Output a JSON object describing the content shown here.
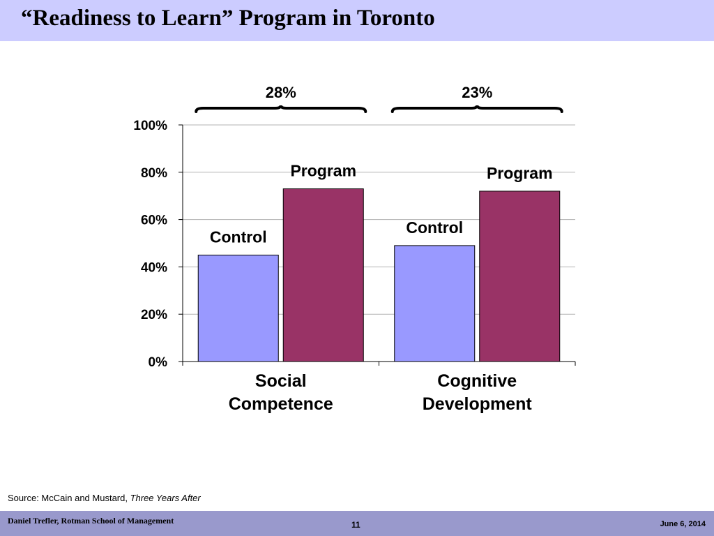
{
  "slide": {
    "title": "“Readiness to Learn” Program in Toronto",
    "source_prefix": "Source: McCain and Mustard, ",
    "source_italic": "Three Years After",
    "author": "Daniel Trefler, Rotman School of Management",
    "page_number": "11",
    "date": "June 6, 2014"
  },
  "colors": {
    "title_bar": "#ccccff",
    "footer_bar": "#9999cc",
    "control_bar": "#9999ff",
    "program_bar": "#993366"
  },
  "chart_data": {
    "type": "bar",
    "categories": [
      "Social Competence",
      "Cognitive Development"
    ],
    "category_lines": [
      [
        "Social",
        "Competence"
      ],
      [
        "Cognitive",
        "Development"
      ]
    ],
    "series": [
      {
        "name": "Control",
        "values": [
          45,
          49
        ]
      },
      {
        "name": "Program",
        "values": [
          73,
          72
        ]
      }
    ],
    "ylim": [
      0,
      100
    ],
    "yticks": [
      "0%",
      "20%",
      "40%",
      "60%",
      "80%",
      "100%"
    ],
    "grid": true,
    "annotations": [
      "28%",
      "23%"
    ],
    "xlabel": "",
    "ylabel": ""
  }
}
